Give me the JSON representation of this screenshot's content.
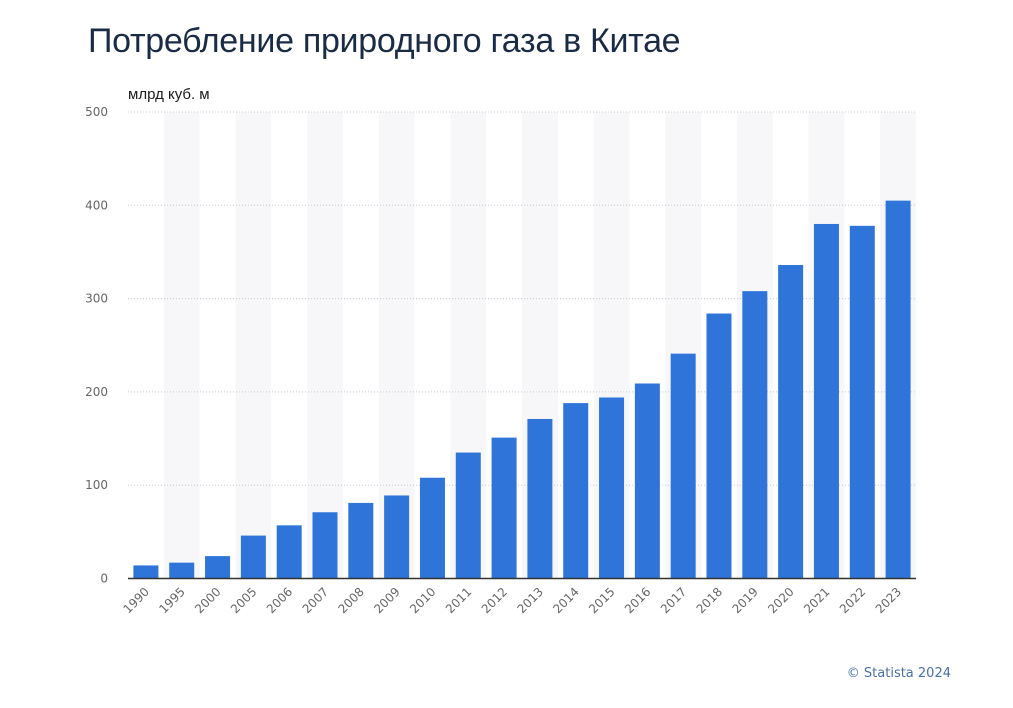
{
  "title": "Потребление природного газа в Китае",
  "credit": "© Statista 2024",
  "chart_data": {
    "type": "bar",
    "title": "Потребление природного газа в Китае",
    "ylabel": "млрд куб. м",
    "xlabel": "",
    "categories": [
      "1990",
      "1995",
      "2000",
      "2005",
      "2006",
      "2007",
      "2008",
      "2009",
      "2010",
      "2011",
      "2012",
      "2013",
      "2014",
      "2015",
      "2016",
      "2017",
      "2018",
      "2019",
      "2020",
      "2021",
      "2022",
      "2023"
    ],
    "values": [
      14,
      17,
      24,
      46,
      57,
      71,
      81,
      89,
      108,
      135,
      151,
      171,
      188,
      194,
      209,
      241,
      284,
      308,
      336,
      380,
      378,
      405
    ],
    "ylim": [
      0,
      500
    ],
    "yticks": [
      0,
      100,
      200,
      300,
      400,
      500
    ],
    "grid": true,
    "bar_color": "#2e74d9",
    "stripe_color": "#f7f7f9"
  }
}
